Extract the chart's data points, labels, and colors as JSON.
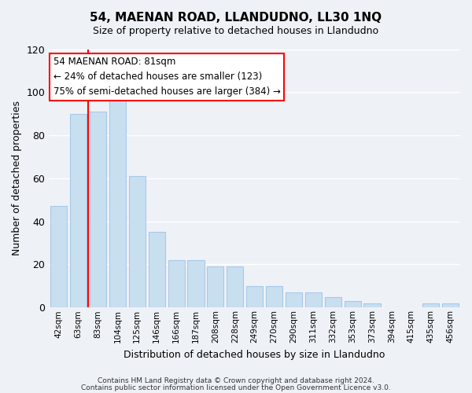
{
  "title": "54, MAENAN ROAD, LLANDUDNO, LL30 1NQ",
  "subtitle": "Size of property relative to detached houses in Llandudno",
  "xlabel": "Distribution of detached houses by size in Llandudno",
  "ylabel": "Number of detached properties",
  "bar_heights": [
    47,
    90,
    91,
    96,
    61,
    35,
    22,
    22,
    19,
    19,
    10,
    10,
    7,
    7,
    5,
    3,
    2,
    0,
    0,
    2,
    2
  ],
  "categories": [
    "42sqm",
    "63sqm",
    "83sqm",
    "104sqm",
    "125sqm",
    "146sqm",
    "166sqm",
    "187sqm",
    "208sqm",
    "228sqm",
    "249sqm",
    "270sqm",
    "290sqm",
    "311sqm",
    "332sqm",
    "353sqm",
    "373sqm",
    "394sqm",
    "415sqm",
    "435sqm",
    "456sqm"
  ],
  "bar_color": "#c8dff0",
  "bar_edge_color": "#a8c8e8",
  "red_line_index": 2,
  "annotation_title": "54 MAENAN ROAD: 81sqm",
  "annotation_line1": "← 24% of detached houses are smaller (123)",
  "annotation_line2": "75% of semi-detached houses are larger (384) →",
  "ylim": [
    0,
    120
  ],
  "yticks": [
    0,
    20,
    40,
    60,
    80,
    100,
    120
  ],
  "background_color": "#eef2f7",
  "grid_color": "#ffffff",
  "footer1": "Contains HM Land Registry data © Crown copyright and database right 2024.",
  "footer2": "Contains public sector information licensed under the Open Government Licence v3.0."
}
